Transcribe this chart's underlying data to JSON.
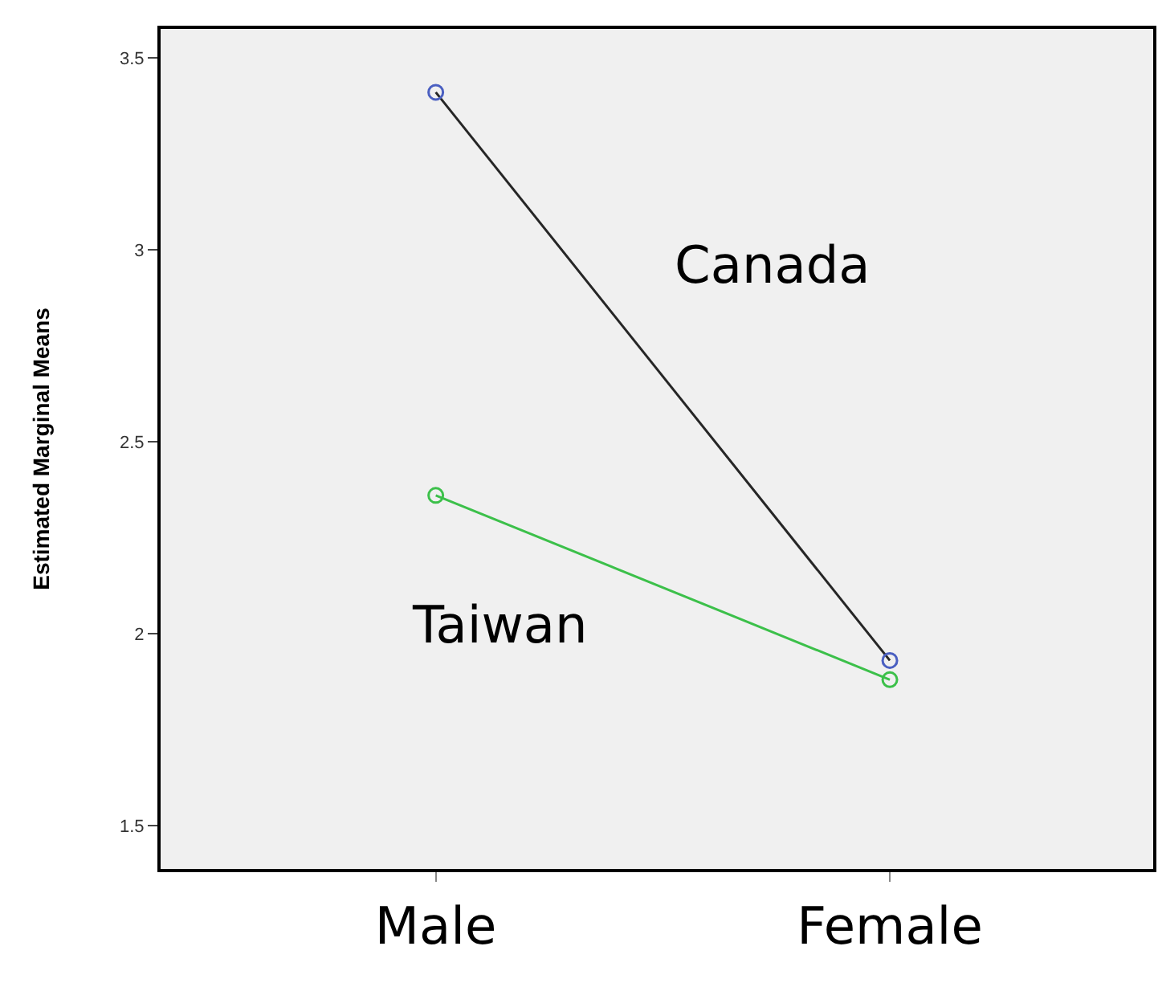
{
  "chart_data": {
    "type": "line",
    "ylabel": "Estimated Marginal Means",
    "categories": [
      "Male",
      "Female"
    ],
    "series": [
      {
        "name": "Canada",
        "color": "#262626",
        "colors": [
          "#4a5fc1",
          "#4a5fc1"
        ],
        "values": [
          3.41,
          1.93
        ]
      },
      {
        "name": "Taiwan",
        "color": "#3cc04a",
        "colors": [
          "#3cc04a",
          "#3cc04a"
        ],
        "values": [
          2.36,
          1.88
        ]
      }
    ],
    "ylim": [
      1.387,
      3.575
    ],
    "yticks": [
      1.5,
      2,
      2.5,
      3,
      3.5
    ],
    "grid": false,
    "legend": false,
    "marker": "circle",
    "line_style": "solid"
  }
}
